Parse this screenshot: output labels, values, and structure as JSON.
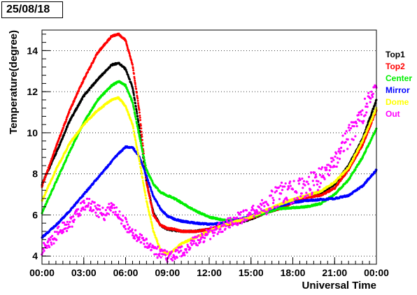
{
  "title": "25/08/18",
  "chart_data": {
    "type": "scatter",
    "title": "25/08/18",
    "xlabel": "Universal Time",
    "ylabel": "Temperature(degree)",
    "xlim": [
      0,
      24
    ],
    "ylim": [
      3.6,
      15.0
    ],
    "x_ticks": [
      0,
      3,
      6,
      9,
      12,
      15,
      18,
      21,
      24
    ],
    "x_tick_labels": [
      "00:00",
      "03:00",
      "06:00",
      "09:00",
      "12:00",
      "15:00",
      "18:00",
      "21:00",
      "00:00"
    ],
    "y_ticks": [
      4,
      6,
      8,
      10,
      12,
      14
    ],
    "y_tick_labels": [
      "4",
      "6",
      "8",
      "10",
      "12",
      "14"
    ],
    "grid": "horizontal dotted",
    "legend_position": "right",
    "series": [
      {
        "name": "Top1",
        "color": "#000000",
        "x": [
          0,
          1,
          2,
          3,
          4,
          5,
          5.5,
          6,
          6.5,
          7,
          7.5,
          8,
          8.5,
          9,
          9.5,
          10,
          11,
          12,
          13,
          14,
          15,
          16,
          17,
          18,
          19,
          20,
          21,
          22,
          23,
          24
        ],
        "y": [
          7.5,
          9.0,
          10.6,
          11.8,
          12.6,
          13.3,
          13.4,
          13.1,
          12.2,
          10.2,
          7.6,
          6.1,
          5.5,
          5.3,
          5.25,
          5.2,
          5.2,
          5.3,
          5.5,
          5.6,
          5.8,
          6.1,
          6.3,
          6.6,
          6.9,
          7.0,
          7.5,
          8.4,
          9.7,
          11.6
        ]
      },
      {
        "name": "Top2",
        "color": "#ff0000",
        "x": [
          0,
          1,
          2,
          3,
          4,
          5,
          5.5,
          6,
          6.5,
          7,
          7.5,
          8,
          8.5,
          9,
          9.5,
          10,
          11,
          12,
          13,
          14,
          15,
          16,
          17,
          18,
          19,
          20,
          21,
          22,
          23,
          24
        ],
        "y": [
          7.4,
          9.3,
          11.1,
          12.6,
          13.9,
          14.7,
          14.8,
          14.5,
          13.3,
          11.0,
          7.6,
          6.0,
          5.5,
          5.35,
          5.3,
          5.2,
          5.2,
          5.3,
          5.5,
          5.65,
          5.85,
          6.1,
          6.3,
          6.6,
          6.85,
          6.95,
          7.3,
          8.2,
          9.4,
          11.1
        ]
      },
      {
        "name": "Center",
        "color": "#00ee00",
        "x": [
          0,
          1,
          2,
          3,
          4,
          5,
          5.5,
          6,
          6.5,
          7,
          7.5,
          8,
          8.5,
          9,
          9.5,
          10,
          11,
          12,
          13,
          14,
          15,
          16,
          17,
          18,
          19,
          20,
          21,
          22,
          23,
          24
        ],
        "y": [
          6.1,
          7.6,
          9.1,
          10.5,
          11.6,
          12.3,
          12.5,
          12.3,
          11.5,
          9.8,
          8.2,
          7.5,
          7.1,
          6.95,
          6.8,
          6.6,
          6.2,
          5.9,
          5.75,
          5.75,
          5.9,
          6.1,
          6.3,
          6.35,
          6.4,
          6.55,
          7.0,
          7.7,
          8.8,
          10.2
        ]
      },
      {
        "name": "Mirror",
        "color": "#0000ff",
        "x": [
          0,
          1,
          2,
          3,
          4,
          5,
          5.5,
          6,
          6.5,
          7,
          7.5,
          8,
          8.5,
          9,
          9.5,
          10,
          11,
          12,
          13,
          14,
          15,
          16,
          17,
          18,
          19,
          20,
          21,
          22,
          23,
          24
        ],
        "y": [
          4.9,
          5.5,
          6.2,
          7.0,
          7.8,
          8.6,
          9.0,
          9.3,
          9.3,
          8.8,
          7.9,
          6.9,
          6.3,
          5.95,
          5.8,
          5.7,
          5.6,
          5.55,
          5.6,
          5.75,
          5.95,
          6.2,
          6.45,
          6.6,
          6.7,
          6.75,
          6.8,
          6.95,
          7.4,
          8.2
        ]
      },
      {
        "name": "Dome",
        "color": "#ffff00",
        "x": [
          0,
          1,
          2,
          3,
          4,
          5,
          5.5,
          6,
          6.5,
          7,
          7.5,
          8,
          8.5,
          9,
          9.5,
          10,
          11,
          12,
          13,
          14,
          15,
          16,
          17,
          18,
          19,
          20,
          21,
          22,
          23,
          24
        ],
        "y": [
          6.7,
          8.2,
          9.5,
          10.4,
          11.1,
          11.6,
          11.7,
          11.3,
          10.4,
          8.6,
          6.7,
          5.2,
          4.3,
          4.1,
          4.3,
          4.6,
          4.9,
          5.2,
          5.5,
          5.7,
          5.9,
          6.2,
          6.5,
          6.75,
          6.95,
          7.15,
          7.6,
          8.3,
          9.6,
          11.2
        ]
      },
      {
        "name": "Out",
        "color": "#ff00ff",
        "x": [
          0,
          0.5,
          1,
          1.5,
          2,
          2.5,
          3,
          3.5,
          4,
          4.5,
          5,
          5.5,
          6,
          6.5,
          7,
          7.5,
          8,
          8.5,
          9,
          9.5,
          10,
          11,
          12,
          13,
          14,
          15,
          16,
          17,
          18,
          19,
          20,
          21,
          22,
          23,
          24
        ],
        "y": [
          4.3,
          4.6,
          5.0,
          5.4,
          5.6,
          6.0,
          6.5,
          6.5,
          6.2,
          6.0,
          6.4,
          6.0,
          5.6,
          5.0,
          4.9,
          4.6,
          4.4,
          4.05,
          3.95,
          4.05,
          4.2,
          4.7,
          5.1,
          5.4,
          5.8,
          6.1,
          6.5,
          7.0,
          7.1,
          7.4,
          7.8,
          8.6,
          9.8,
          10.9,
          12.2
        ]
      }
    ]
  }
}
